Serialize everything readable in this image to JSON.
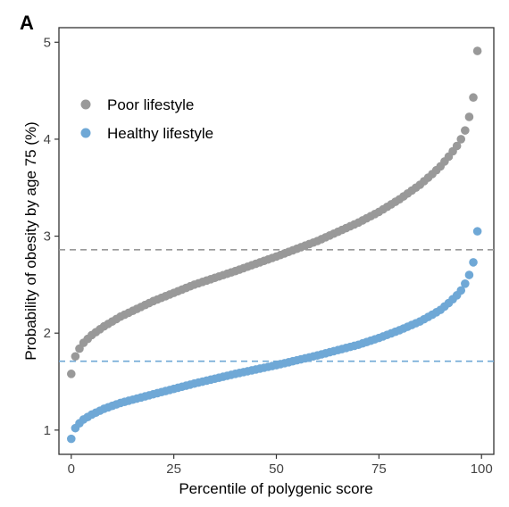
{
  "chart_data": {
    "type": "scatter",
    "panel_label": "A",
    "xlabel": "Percentile of polygenic score",
    "ylabel": "Probability of obesity by age 75 (%)",
    "xlim": [
      -3,
      103
    ],
    "ylim": [
      0.75,
      5.15
    ],
    "xticks": [
      0,
      25,
      50,
      75,
      100
    ],
    "yticks": [
      1,
      2,
      3,
      4,
      5
    ],
    "grid": false,
    "legend_position": "top-left",
    "series": [
      {
        "name": "Poor lifestyle",
        "color": "#999999",
        "x": [
          0,
          1,
          2,
          3,
          5,
          8,
          12,
          20,
          30,
          40,
          50,
          60,
          70,
          75,
          80,
          85,
          88,
          90,
          92,
          94,
          95,
          96,
          97,
          98,
          99
        ],
        "y": [
          1.58,
          1.76,
          1.84,
          1.9,
          1.98,
          2.07,
          2.17,
          2.33,
          2.5,
          2.64,
          2.79,
          2.95,
          3.14,
          3.25,
          3.38,
          3.53,
          3.64,
          3.72,
          3.82,
          3.93,
          4.0,
          4.09,
          4.23,
          4.43,
          4.91
        ]
      },
      {
        "name": "Healthy lifestyle",
        "color": "#6fa8d6",
        "x": [
          0,
          1,
          2,
          3,
          5,
          8,
          12,
          20,
          30,
          40,
          50,
          60,
          70,
          75,
          80,
          85,
          88,
          90,
          92,
          94,
          95,
          96,
          97,
          98,
          99
        ],
        "y": [
          0.91,
          1.02,
          1.07,
          1.11,
          1.16,
          1.22,
          1.28,
          1.37,
          1.48,
          1.58,
          1.67,
          1.77,
          1.88,
          1.95,
          2.03,
          2.12,
          2.19,
          2.24,
          2.31,
          2.39,
          2.44,
          2.51,
          2.6,
          2.73,
          3.05
        ]
      }
    ],
    "reference_lines": [
      {
        "y": 2.86,
        "color": "#999999",
        "style": "dashed"
      },
      {
        "y": 1.71,
        "color": "#6fa8d6",
        "style": "dashed"
      }
    ]
  }
}
